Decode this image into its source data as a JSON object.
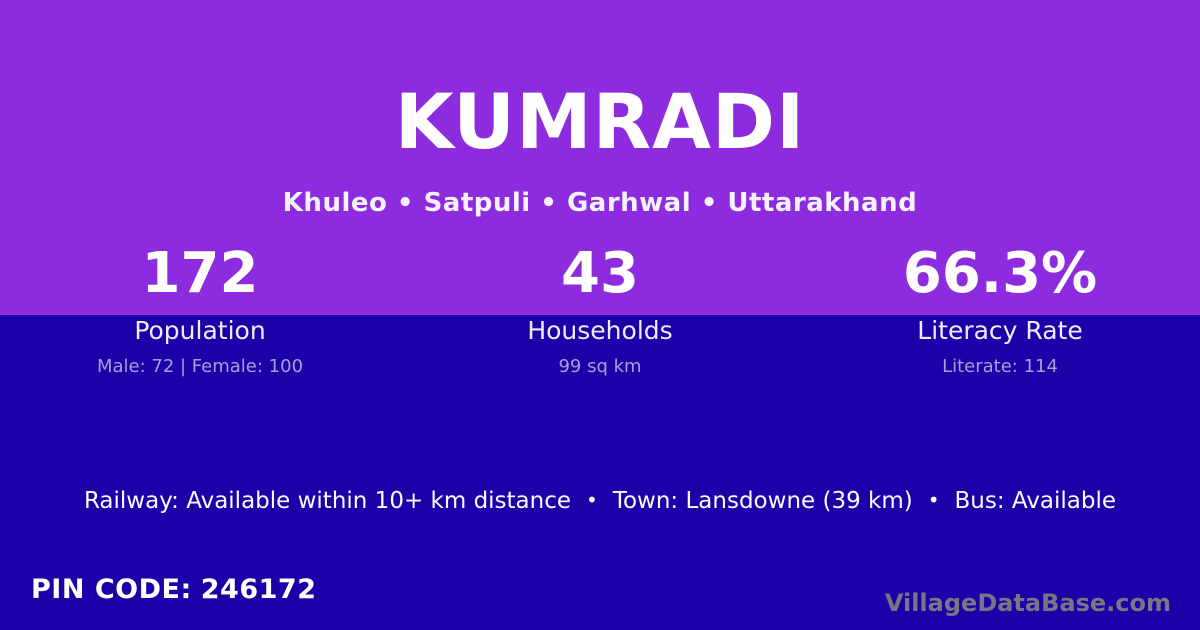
{
  "header": {
    "title": "KUMRADI",
    "location_line": "Khuleo • Satpuli • Garhwal • Uttarakhand",
    "location_parts": [
      "Khuleo",
      "Satpuli",
      "Garhwal",
      "Uttarakhand"
    ]
  },
  "stats": [
    {
      "value": "172",
      "label": "Population",
      "detail": "Male: 72 | Female: 100"
    },
    {
      "value": "43",
      "label": "Households",
      "detail": "99 sq km"
    },
    {
      "value": "66.3%",
      "label": "Literacy Rate",
      "detail": "Literate: 114"
    }
  ],
  "info": {
    "separator": "•",
    "segments": [
      "Railway: Available within 10+ km distance",
      "Town: Lansdowne (39 km)",
      "Bus: Available"
    ]
  },
  "footer": {
    "pin_label": "PIN CODE:",
    "pin_value": "246172",
    "watermark": "VillageDataBase.com"
  },
  "colors": {
    "top_background": "#8d2bdf",
    "bottom_background": "#1b01a8",
    "primary_text": "#ffffff",
    "stat_label_text": "#f0edfa",
    "stat_detail_text": "#a89fd9",
    "watermark_text": "#7a7582"
  }
}
